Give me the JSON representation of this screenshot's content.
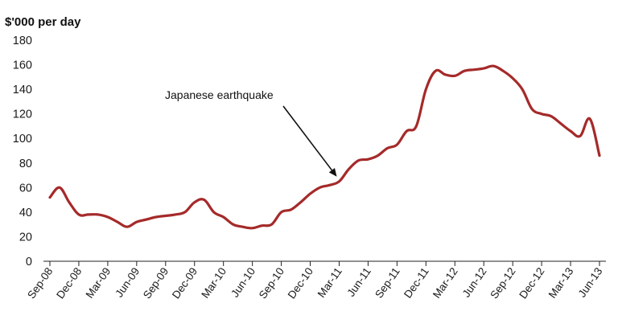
{
  "chart_data": {
    "type": "line",
    "title": "",
    "unit_label": "$'000 per day",
    "xlabel": "",
    "ylabel": "",
    "ylim": [
      0,
      180
    ],
    "yticks": [
      0,
      20,
      40,
      60,
      80,
      100,
      120,
      140,
      160,
      180
    ],
    "grid": false,
    "legend": "none",
    "colors": {
      "line": "#a52a2a",
      "axis": "#222222"
    },
    "x_tick_labels": [
      "Sep-08",
      "Dec-08",
      "Mar-09",
      "Jun-09",
      "Sep-09",
      "Dec-09",
      "Mar-10",
      "Jun-10",
      "Sep-10",
      "Dec-10",
      "Mar-11",
      "Jun-11",
      "Sep-11",
      "Dec-11",
      "Mar-12",
      "Jun-12",
      "Sep-12",
      "Dec-12",
      "Mar-13",
      "Jun-13"
    ],
    "x": [
      "Sep-08",
      "Oct-08",
      "Nov-08",
      "Dec-08",
      "Jan-09",
      "Feb-09",
      "Mar-09",
      "Apr-09",
      "May-09",
      "Jun-09",
      "Jul-09",
      "Aug-09",
      "Sep-09",
      "Oct-09",
      "Nov-09",
      "Dec-09",
      "Jan-10",
      "Feb-10",
      "Mar-10",
      "Apr-10",
      "May-10",
      "Jun-10",
      "Jul-10",
      "Aug-10",
      "Sep-10",
      "Oct-10",
      "Nov-10",
      "Dec-10",
      "Jan-11",
      "Feb-11",
      "Mar-11",
      "Apr-11",
      "May-11",
      "Jun-11",
      "Jul-11",
      "Aug-11",
      "Sep-11",
      "Oct-11",
      "Nov-11",
      "Dec-11",
      "Jan-12",
      "Feb-12",
      "Mar-12",
      "Apr-12",
      "May-12",
      "Jun-12",
      "Jul-12",
      "Aug-12",
      "Sep-12",
      "Oct-12",
      "Nov-12",
      "Dec-12",
      "Jan-13",
      "Feb-13",
      "Mar-13",
      "Apr-13",
      "May-13",
      "Jun-13"
    ],
    "series": [
      {
        "values": [
          52,
          60,
          48,
          38,
          38,
          38,
          36,
          32,
          28,
          32,
          34,
          36,
          37,
          38,
          40,
          48,
          50,
          40,
          36,
          30,
          28,
          27,
          29,
          30,
          40,
          42,
          48,
          55,
          60,
          62,
          65,
          75,
          82,
          83,
          86,
          92,
          95,
          106,
          110,
          140,
          155,
          152,
          151,
          155,
          156,
          157,
          159,
          155,
          149,
          140,
          124,
          120,
          118,
          112,
          106,
          102,
          116,
          86
        ]
      }
    ],
    "annotations": [
      {
        "text": "Japanese earthquake",
        "points_to": "Mar-11"
      }
    ]
  }
}
